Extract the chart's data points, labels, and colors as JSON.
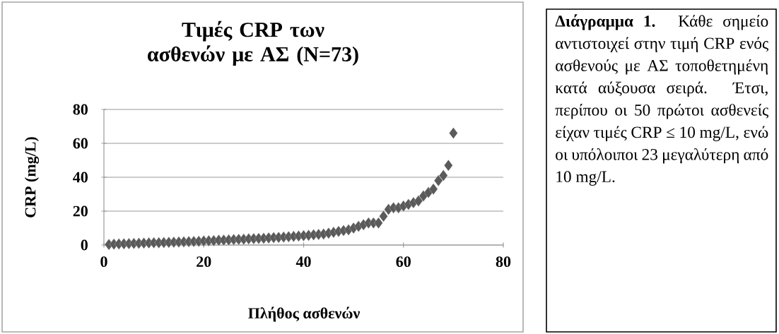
{
  "chart_data": {
    "type": "scatter",
    "title": "Τιμές CRP των ασθενών με ΑΣ (N=73)",
    "xlabel": "Πλήθος ασθενών",
    "ylabel": "CRP (mg/L)",
    "x": [
      1,
      2,
      3,
      4,
      5,
      6,
      7,
      8,
      9,
      10,
      11,
      12,
      13,
      14,
      15,
      16,
      17,
      18,
      19,
      20,
      21,
      22,
      23,
      24,
      25,
      26,
      27,
      28,
      29,
      30,
      31,
      32,
      33,
      34,
      35,
      36,
      37,
      38,
      39,
      40,
      41,
      42,
      43,
      44,
      45,
      46,
      47,
      48,
      49,
      50,
      51,
      52,
      53,
      54,
      55,
      56,
      57,
      58,
      59,
      60,
      61,
      62,
      63,
      64,
      65,
      66,
      67,
      68,
      69,
      70
    ],
    "values": [
      0.3,
      0.5,
      0.6,
      0.7,
      0.8,
      0.9,
      1.0,
      1.1,
      1.2,
      1.3,
      1.4,
      1.5,
      1.6,
      1.7,
      1.8,
      1.9,
      2.0,
      2.1,
      2.2,
      2.4,
      2.5,
      2.6,
      2.8,
      2.9,
      3.0,
      3.2,
      3.3,
      3.4,
      3.6,
      3.7,
      3.9,
      4.0,
      4.2,
      4.4,
      4.5,
      4.7,
      4.9,
      5.1,
      5.3,
      5.5,
      5.7,
      6.0,
      6.2,
      6.5,
      7,
      7.5,
      8,
      8.5,
      9,
      10,
      11,
      12,
      13,
      13,
      13,
      17,
      21,
      22,
      22,
      23,
      24,
      25,
      26,
      29,
      31,
      33,
      38,
      41,
      47,
      66
    ],
    "color": "#5a5a5a",
    "marker": "diamond",
    "xlim": [
      0,
      80
    ],
    "ylim": [
      0,
      80
    ],
    "xticks": [
      0,
      20,
      40,
      60,
      80
    ],
    "yticks": [
      0,
      20,
      40,
      60,
      80
    ],
    "grid": "y",
    "annotations": [
      "**Διάγραμμα 1.** Κάθε σημείο αντιστοιχεί στην τιμή CRP ενός ασθενούς με ΑΣ τοποθετημένη κατά αύξουσα σειρά. Έτσι, περίπου οι 50 πρώτοι ασθενείς είχαν τιμές CRP ≤ 10 mg/L, ενώ οι υπόλοιποι 23 μεγαλύτερη από 10 mg/L."
    ]
  }
}
